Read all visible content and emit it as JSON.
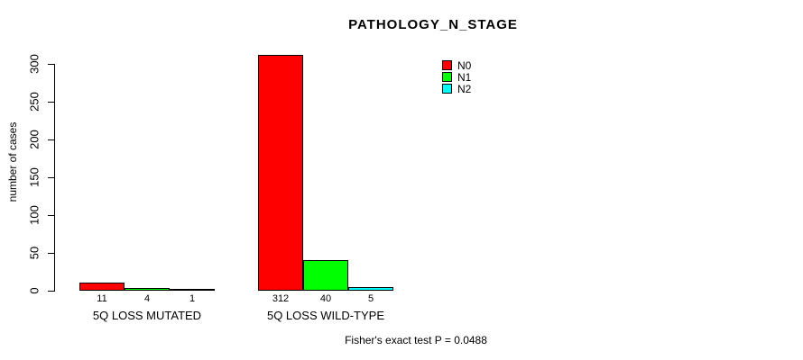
{
  "chart_data": {
    "type": "bar",
    "title": "PATHOLOGY_N_STAGE",
    "xlabel": "",
    "ylabel": "number of cases",
    "ylim": [
      0,
      300
    ],
    "yticks": [
      0,
      50,
      100,
      150,
      200,
      250,
      300
    ],
    "grid": false,
    "legend_position": "top-right-inside",
    "categories": [
      "5Q LOSS MUTATED",
      "5Q LOSS WILD-TYPE"
    ],
    "series": [
      {
        "name": "N0",
        "color": "#FF0000",
        "values": [
          11,
          312
        ]
      },
      {
        "name": "N1",
        "color": "#00FF00",
        "values": [
          4,
          40
        ]
      },
      {
        "name": "N2",
        "color": "#00FFFF",
        "values": [
          1,
          5
        ]
      }
    ],
    "annotation": "Fisher's exact test P = 0.0488"
  }
}
